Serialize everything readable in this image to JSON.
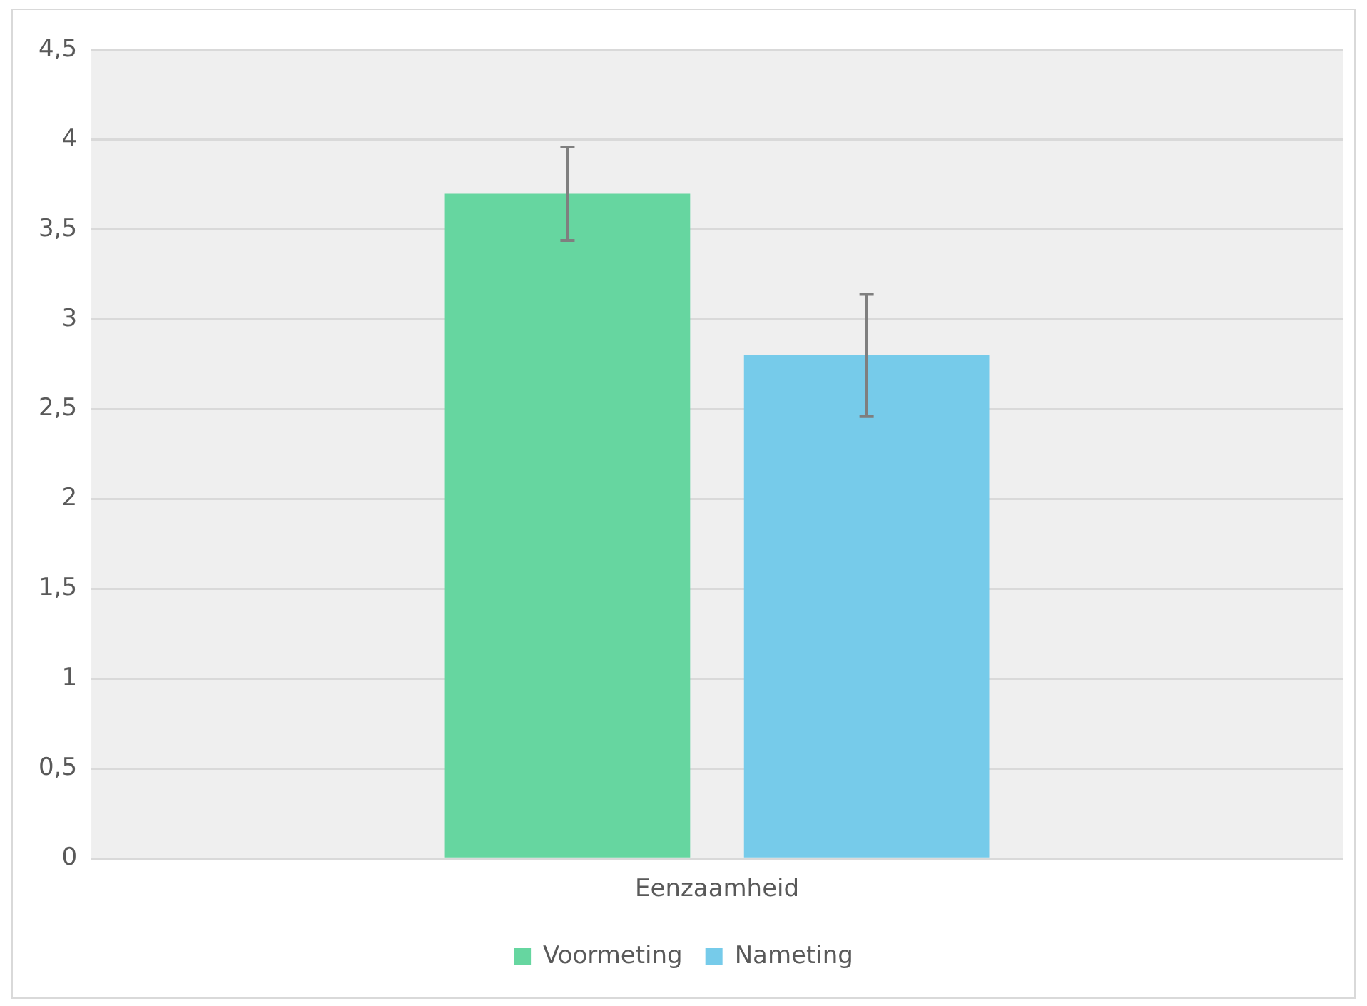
{
  "chart_data": {
    "type": "bar",
    "categories": [
      "Eenzaamheid"
    ],
    "series": [
      {
        "name": "Voormeting",
        "color": "#66d6a0",
        "values": [
          3.7
        ],
        "errors": [
          0.26
        ]
      },
      {
        "name": "Nameting",
        "color": "#76cbea",
        "values": [
          2.8
        ],
        "errors": [
          0.34
        ]
      }
    ],
    "ylim": [
      0,
      4.5
    ],
    "yticks": [
      0,
      {
        "value": 0.5,
        "label": "0,5"
      },
      1,
      {
        "value": 1.5,
        "label": "1,5"
      },
      2,
      {
        "value": 2.5,
        "label": "2,5"
      },
      3,
      {
        "value": 3.5,
        "label": "3,5"
      },
      4,
      {
        "value": 4.5,
        "label": "4,5"
      }
    ],
    "grid": "y",
    "legend": "bottom"
  }
}
